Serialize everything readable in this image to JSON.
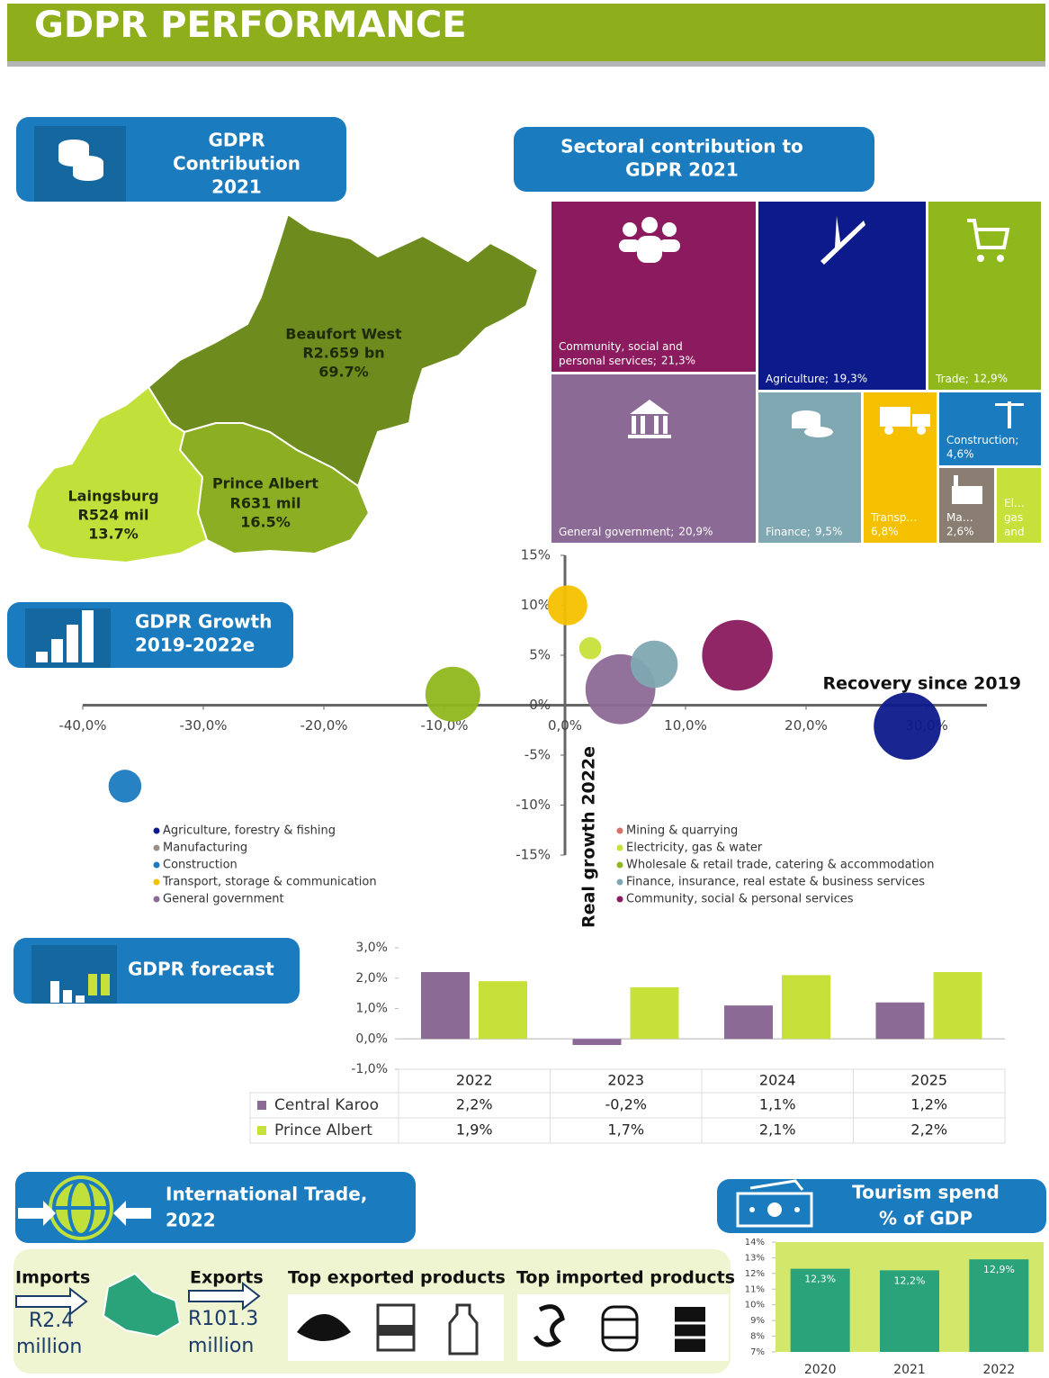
{
  "header": {
    "title": "GDPR PERFORMANCE"
  },
  "contribution": {
    "heading": [
      "GDPR",
      "Contribution",
      "2021"
    ],
    "regions": [
      {
        "name": "Beaufort West",
        "value": "R2.659 bn",
        "share": "69.7%"
      },
      {
        "name": "Prince Albert",
        "value": "R631 mil",
        "share": "16.5%"
      },
      {
        "name": "Laingsburg",
        "value": "R524 mil",
        "share": "13.7%"
      }
    ]
  },
  "growth": {
    "heading": [
      "GDPR Growth",
      "2019-2022e"
    ]
  },
  "forecast": {
    "heading": "GDPR forecast"
  },
  "trade": {
    "heading": [
      "International Trade,",
      "2022"
    ],
    "imports": {
      "label": "Imports",
      "value": [
        "R2.4",
        "million"
      ]
    },
    "exports": {
      "label": "Exports",
      "value": [
        "R101.3",
        "million"
      ]
    },
    "exported_title": "Top exported products",
    "imported_title": "Top imported products"
  },
  "tourism": {
    "heading": [
      "Tourism spend",
      "% of GDP"
    ]
  },
  "chart_data": [
    {
      "type": "treemap",
      "title": [
        "Sectoral contribution to",
        "GDPR 2021"
      ],
      "categories": [
        "Community, social and personal services;",
        "Agriculture;",
        "Trade;",
        "General government;",
        "Finance;",
        "Transp…",
        "Construction;",
        "Ma…",
        "El… gas and"
      ],
      "values": [
        21.3,
        19.3,
        12.9,
        20.9,
        9.5,
        6.8,
        4.6,
        2.6,
        2.1
      ],
      "value_labels": [
        "21,3%",
        "19,3%",
        "12,9%",
        "20,9%",
        "9,5%",
        "6,8%",
        "4,6%",
        "2,6%",
        null
      ],
      "colors": [
        "#8b1a5e",
        "#0d1a8c",
        "#8fb81c",
        "#8c6a96",
        "#7fa8b2",
        "#f5c000",
        "#1a7bbf",
        "#8a7e72",
        "#c8e03a"
      ]
    },
    {
      "type": "scatter",
      "x_label": "Recovery since 2019",
      "y_label": "Real growth 2022e",
      "xlim": [
        -40,
        35
      ],
      "ylim": [
        -15,
        15
      ],
      "xticks": [
        {
          "value": -40,
          "label": "-40,0%"
        },
        {
          "value": -30,
          "label": "-30,0%"
        },
        {
          "value": -20,
          "label": "-20,0%"
        },
        {
          "value": -10,
          "label": "-10,0%"
        },
        {
          "value": 0,
          "label": "0,0%"
        },
        {
          "value": 10,
          "label": "10,0%"
        },
        {
          "value": 20,
          "label": "20,0%"
        },
        {
          "value": 30,
          "label": "30,0%"
        }
      ],
      "yticks": [
        {
          "value": -15,
          "label": "-15%"
        },
        {
          "value": -10,
          "label": "-10%"
        },
        {
          "value": -5,
          "label": "-5%"
        },
        {
          "value": 0,
          "label": "0%"
        },
        {
          "value": 5,
          "label": "5%"
        },
        {
          "value": 10,
          "label": "10%"
        },
        {
          "value": 15,
          "label": "15%"
        }
      ],
      "series": [
        {
          "name": "Agriculture, forestry & fishing",
          "color": "#0d1a8c",
          "x": [
            28.4
          ],
          "values": [
            -2.1
          ],
          "sizes": [
            19.3
          ]
        },
        {
          "name": "Manufacturing",
          "color": "#9b8f86",
          "x": [
            null
          ],
          "values": [
            null
          ],
          "sizes": [
            null
          ]
        },
        {
          "name": "Construction",
          "color": "#1a7bbf",
          "x": [
            -36.5
          ],
          "values": [
            -8.1
          ],
          "sizes": [
            4.6
          ]
        },
        {
          "name": "Transport, storage & communication",
          "color": "#f5c000",
          "x": [
            0.2
          ],
          "values": [
            10.0
          ],
          "sizes": [
            6.8
          ]
        },
        {
          "name": "General government",
          "color": "#8c6a96",
          "x": [
            4.6
          ],
          "values": [
            1.6
          ],
          "sizes": [
            20.9
          ]
        },
        {
          "name": "Mining & quarrying",
          "color": "#d9706a",
          "x": [
            null
          ],
          "values": [
            null
          ],
          "sizes": [
            null
          ]
        },
        {
          "name": "Electricity, gas & water",
          "color": "#c8e03a",
          "x": [
            2.1
          ],
          "values": [
            5.7
          ],
          "sizes": [
            2.1
          ]
        },
        {
          "name": "Wholesale & retail trade, catering & accommodation",
          "color": "#8fb81c",
          "x": [
            -9.3
          ],
          "values": [
            1.1
          ],
          "sizes": [
            12.9
          ]
        },
        {
          "name": "Finance, insurance, real estate & business services",
          "color": "#7fa8b2",
          "x": [
            7.4
          ],
          "values": [
            4.1
          ],
          "sizes": [
            9.5
          ]
        },
        {
          "name": "Community, social & personal services",
          "color": "#8b1a5e",
          "x": [
            14.3
          ],
          "values": [
            5.0
          ],
          "sizes": [
            21.3
          ]
        }
      ]
    },
    {
      "type": "bar",
      "categories": [
        "2022",
        "2023",
        "2024",
        "2025"
      ],
      "ylim": [
        -1,
        3
      ],
      "yticks": [
        {
          "value": -1,
          "label": "-1,0%"
        },
        {
          "value": 0,
          "label": "0,0%"
        },
        {
          "value": 1,
          "label": "1,0%"
        },
        {
          "value": 2,
          "label": "2,0%"
        },
        {
          "value": 3,
          "label": "3,0%"
        }
      ],
      "series": [
        {
          "name": "Central Karoo",
          "color": "#8c6a96",
          "values": [
            2.2,
            -0.2,
            1.1,
            1.2
          ],
          "value_labels": [
            "2,2%",
            "-0,2%",
            "1,1%",
            "1,2%"
          ]
        },
        {
          "name": "Prince Albert",
          "color": "#c8e03a",
          "values": [
            1.9,
            1.7,
            2.1,
            2.2
          ],
          "value_labels": [
            "1,9%",
            "1,7%",
            "2,1%",
            "2,2%"
          ]
        }
      ]
    },
    {
      "type": "bar",
      "categories": [
        "2020",
        "2021",
        "2022"
      ],
      "values": [
        12.3,
        12.2,
        12.9
      ],
      "value_labels": [
        "12,3%",
        "12,2%",
        "12,9%"
      ],
      "color": "#2aa37a",
      "ylim": [
        7,
        14
      ],
      "yticks": [
        {
          "value": 7,
          "label": "7%"
        },
        {
          "value": 8,
          "label": "8%"
        },
        {
          "value": 9,
          "label": "9%"
        },
        {
          "value": 10,
          "label": "10%"
        },
        {
          "value": 11,
          "label": "11%"
        },
        {
          "value": 12,
          "label": "12%"
        },
        {
          "value": 13,
          "label": "13%"
        },
        {
          "value": 14,
          "label": "14%"
        }
      ]
    }
  ]
}
